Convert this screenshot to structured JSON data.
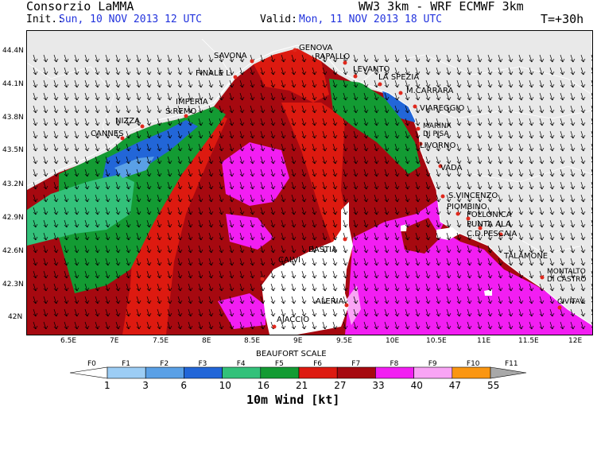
{
  "header": {
    "producer": "Consorzio LaMMA",
    "model": "WW3 3km - WRF ECMWF 3km",
    "init_label": "Init.:",
    "init_value": "Sun, 10 NOV 2013   12 UTC",
    "valid_label": "Valid:",
    "valid_value": "Mon, 11 NOV 2013   18 UTC",
    "lead_time": "T=+30h"
  },
  "axes": {
    "lat_ticks": [
      "44.4N",
      "44.1N",
      "43.8N",
      "43.5N",
      "43.2N",
      "42.9N",
      "42.6N",
      "42.3N",
      "42N"
    ],
    "lon_ticks": [
      "6.5E",
      "7E",
      "7.5E",
      "8E",
      "8.5E",
      "9E",
      "9.5E",
      "10E",
      "10.5E",
      "11E",
      "11.5E",
      "12E"
    ]
  },
  "places": [
    {
      "name": "GENOVA"
    },
    {
      "name": "SAVONA"
    },
    {
      "name": "RAPALLO"
    },
    {
      "name": "FINALE L."
    },
    {
      "name": "LEVANTO"
    },
    {
      "name": "LA SPEZIA"
    },
    {
      "name": "M.CARRARA"
    },
    {
      "name": "IMPERIA"
    },
    {
      "name": "S.REMO"
    },
    {
      "name": "VIAREGGIO"
    },
    {
      "name": "NIZZA"
    },
    {
      "name": "MARINA"
    },
    {
      "name": "DI PISA"
    },
    {
      "name": "CANNES"
    },
    {
      "name": "LIVORNO"
    },
    {
      "name": "VADA"
    },
    {
      "name": "S.VINCENZO"
    },
    {
      "name": "PIOMBINO"
    },
    {
      "name": "FOLLONICA"
    },
    {
      "name": "PUNTA ALA"
    },
    {
      "name": "C.D.PESCAIA"
    },
    {
      "name": "BASTIA"
    },
    {
      "name": "CALVI"
    },
    {
      "name": "TALAMONE"
    },
    {
      "name": "MONTALTO"
    },
    {
      "name": "DI CASTRO"
    },
    {
      "name": "ALERIA"
    },
    {
      "name": "CIVITAV."
    },
    {
      "name": "AJACCIO"
    }
  ],
  "legend": {
    "title": "BEAUFORT SCALE",
    "classes": [
      "F0",
      "F1",
      "F2",
      "F3",
      "F4",
      "F5",
      "F6",
      "F7",
      "F8",
      "F9",
      "F10",
      "F11"
    ],
    "colors": [
      "#ffffff",
      "#9ccdf5",
      "#5aa0e6",
      "#2266d8",
      "#33c17a",
      "#139b33",
      "#dd1a10",
      "#a60910",
      "#f21ef2",
      "#f9a4f5",
      "#fa9612",
      "#a8a8a8"
    ],
    "thresholds": [
      "1",
      "3",
      "6",
      "10",
      "16",
      "21",
      "27",
      "33",
      "40",
      "47",
      "55"
    ],
    "variable": "10m Wind [kt]"
  }
}
